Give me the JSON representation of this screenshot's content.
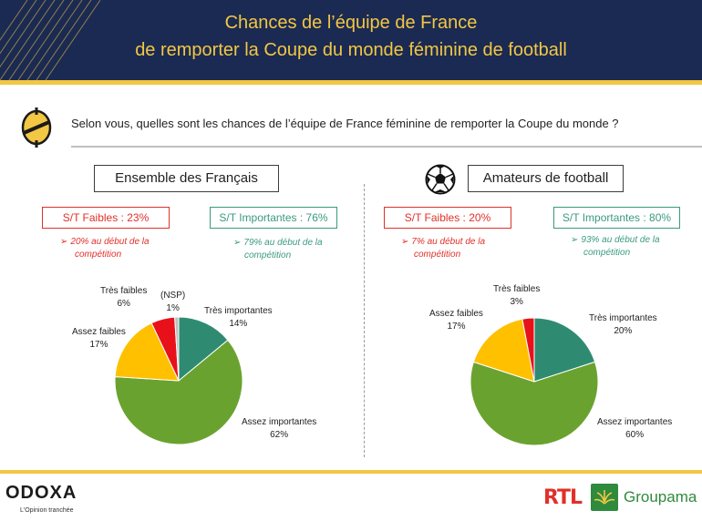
{
  "header": {
    "title_line1": "Chances de l’équipe de France",
    "title_line2": "de remporter la Coupe du monde féminine de football"
  },
  "question": "Selon vous, quelles sont les chances de l’équipe de France féminine de remporter la Coupe du monde ?",
  "colors": {
    "header_bg": "#1b2a52",
    "gold": "#f2c744",
    "red": "#e0302a",
    "teal": "#3a9a80",
    "tres_faibles": "#e8111a",
    "assez_faibles": "#ffc000",
    "nsp": "#bfbfbf",
    "tres_importantes": "#2e8b72",
    "assez_importantes": "#6aa22f"
  },
  "panels": [
    {
      "title": "Ensemble des Français",
      "faibles": "S/T Faibles : 23%",
      "faibles_note_1": "20% au début de la",
      "faibles_note_2": "compétition",
      "importantes": "S/T Importantes : 76%",
      "importantes_note_1": "79% au début de la",
      "importantes_note_2": "compétition"
    },
    {
      "title": "Amateurs de football",
      "faibles": "S/T Faibles : 20%",
      "faibles_note_1": "7% au début de la",
      "faibles_note_2": "compétition",
      "importantes": "S/T Importantes : 80%",
      "importantes_note_1": "93% au début de la",
      "importantes_note_2": "compétition"
    }
  ],
  "chart_data": [
    {
      "type": "pie",
      "title": "Ensemble des Français",
      "labels": [
        "Très importantes",
        "Assez importantes",
        "Assez faibles",
        "Très faibles",
        "(NSP)"
      ],
      "values": [
        14,
        62,
        17,
        6,
        1
      ],
      "value_labels": [
        "14%",
        "62%",
        "17%",
        "6%",
        "1%"
      ]
    },
    {
      "type": "pie",
      "title": "Amateurs de football",
      "labels": [
        "Très importantes",
        "Assez importantes",
        "Assez faibles",
        "Très faibles"
      ],
      "values": [
        20,
        60,
        17,
        3
      ],
      "value_labels": [
        "20%",
        "60%",
        "17%",
        "3%"
      ]
    }
  ],
  "footer": {
    "odoxa": "ODOXA",
    "odoxa_tagline": "L'Opinion tranchée",
    "rtl": "RTL",
    "groupama": "Groupama"
  }
}
